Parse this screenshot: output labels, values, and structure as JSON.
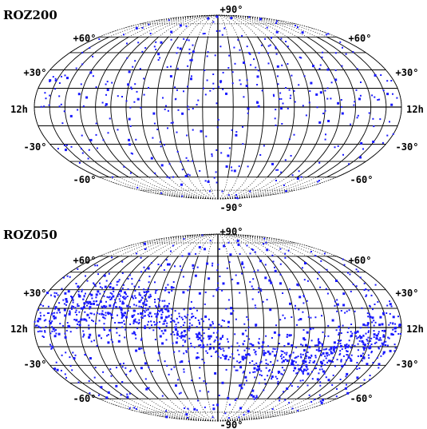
{
  "marker_color": "#1a1aff",
  "line_color": "#000000",
  "maps": [
    {
      "title": "ROZ200",
      "labels": {
        "north_pole": "+90°",
        "south_pole": "-90°",
        "lat_p60": "+60°",
        "lat_p30": "+30°",
        "lat_m30": "-30°",
        "lat_m60": "-60°",
        "ra_12h": "12h"
      },
      "source_count": 430,
      "distribution": "uniform",
      "seed": 11
    },
    {
      "title": "ROZ050",
      "labels": {
        "north_pole": "+90°",
        "south_pole": "-90°",
        "lat_p60": "+60°",
        "lat_p30": "+30°",
        "lat_m30": "-30°",
        "lat_m60": "-60°",
        "ra_12h": "12h"
      },
      "source_count": 1500,
      "distribution": "galactic-band",
      "seed": 29
    }
  ]
}
